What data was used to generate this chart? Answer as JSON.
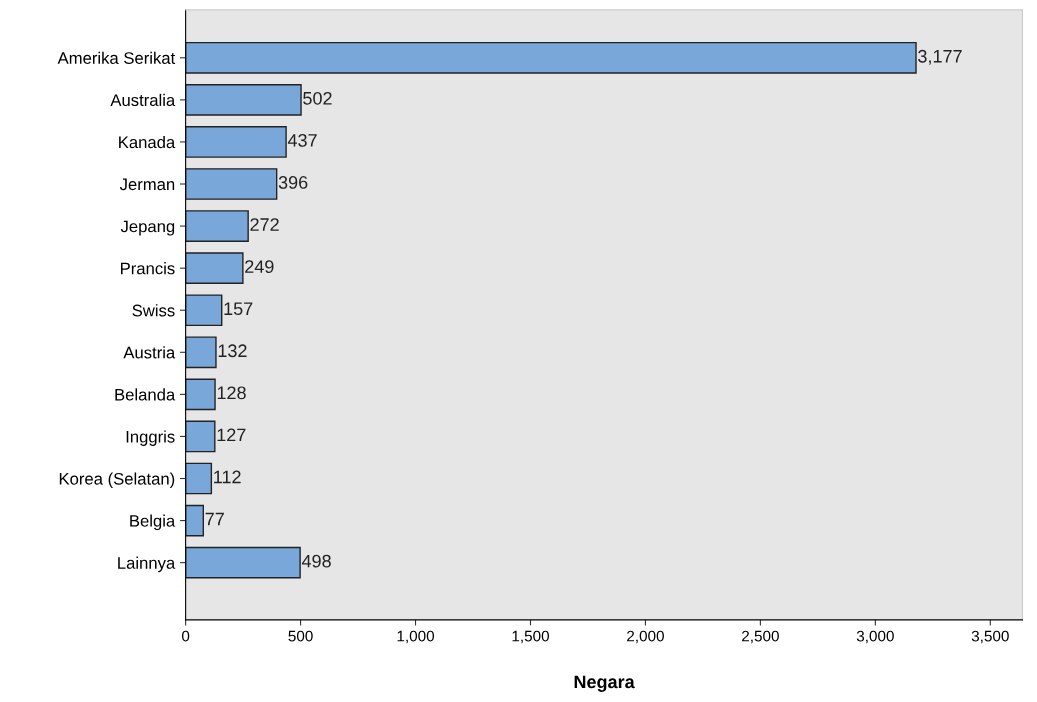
{
  "chart_data": {
    "type": "bar",
    "orientation": "horizontal",
    "xlabel": "Negara",
    "categories": [
      "Amerika Serikat",
      "Australia",
      "Kanada",
      "Jerman",
      "Jepang",
      "Prancis",
      "Swiss",
      "Austria",
      "Belanda",
      "Inggris",
      "Korea (Selatan)",
      "Belgia",
      "Lainnya"
    ],
    "values": [
      3177,
      502,
      437,
      396,
      272,
      249,
      157,
      132,
      128,
      127,
      112,
      77,
      498
    ],
    "value_labels": [
      "3,177",
      "502",
      "437",
      "396",
      "272",
      "249",
      "157",
      "132",
      "128",
      "127",
      "112",
      "77",
      "498"
    ],
    "color": "#79a7d9",
    "xlim": [
      0,
      3640
    ],
    "xticks": [
      0,
      500,
      {
        "value": 1000,
        "label": "1,000"
      },
      {
        "value": 1500,
        "label": "1,500"
      },
      {
        "value": 2000,
        "label": "2,000"
      },
      {
        "value": 2500,
        "label": "2,500"
      },
      {
        "value": 3000,
        "label": "3,000"
      },
      {
        "value": 3500,
        "label": "3,500"
      }
    ],
    "grid": false
  }
}
